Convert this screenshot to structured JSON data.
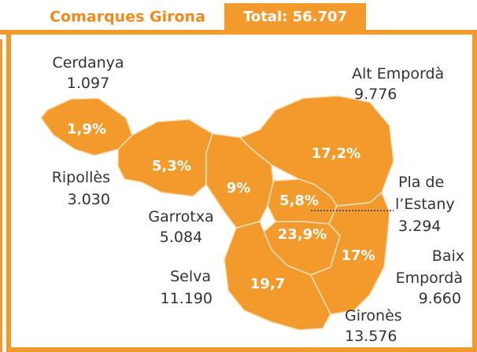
{
  "header": {
    "title": "Comarques Girona",
    "total": "Total: 56.707"
  },
  "regions": [
    {
      "name": [
        "Cerdanya"
      ],
      "value": "1.097",
      "percent": "1,9%"
    },
    {
      "name": [
        "Ripollès"
      ],
      "value": "3.030",
      "percent": "5,3%"
    },
    {
      "name": [
        "Garrotxa"
      ],
      "value": "5.084",
      "percent": "9%"
    },
    {
      "name": [
        "Alt Empordà"
      ],
      "value": "9.776",
      "percent": "17,2%"
    },
    {
      "name": [
        "Pla de",
        "l’Estany"
      ],
      "value": "3.294",
      "percent": "5,8%"
    },
    {
      "name": [
        "Gironès"
      ],
      "value": "13.576",
      "percent": "23,9%"
    },
    {
      "name": [
        "Selva"
      ],
      "value": "11.190",
      "percent": "19,7"
    },
    {
      "name": [
        "Baix",
        "Empordà"
      ],
      "value": "9.660",
      "percent": "17%"
    }
  ]
}
